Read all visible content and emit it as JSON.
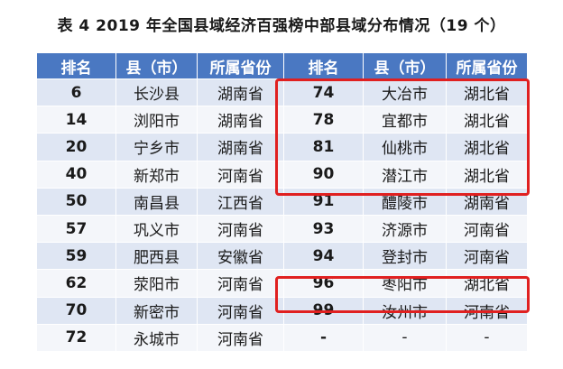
{
  "title": "表 4  2019 年全国县域经济百强榜中部县域分布情况（19 个）",
  "headers": [
    "排名",
    "县（市）",
    "所属省份",
    "排名",
    "县（市）",
    "所属省份"
  ],
  "rows": [
    [
      "6",
      "长沙县",
      "湖南省",
      "74",
      "大冶市",
      "湖北省"
    ],
    [
      "14",
      "浏阳市",
      "湖南省",
      "78",
      "宜都市",
      "湖北省"
    ],
    [
      "20",
      "宁乡市",
      "湖南省",
      "81",
      "仙桃市",
      "湖北省"
    ],
    [
      "40",
      "新郑市",
      "河南省",
      "90",
      "潜江市",
      "湖北省"
    ],
    [
      "50",
      "南昌县",
      "江西省",
      "91",
      "醴陵市",
      "湖南省"
    ],
    [
      "57",
      "巩义市",
      "河南省",
      "93",
      "济源市",
      "河南省"
    ],
    [
      "59",
      "肥西县",
      "安徽省",
      "94",
      "登封市",
      "河南省"
    ],
    [
      "62",
      "荥阳市",
      "河南省",
      "96",
      "枣阳市",
      "湖北省"
    ],
    [
      "70",
      "新密市",
      "河南省",
      "99",
      "汝州市",
      "河南省"
    ],
    [
      "72",
      "永城市",
      "河南省",
      "-",
      "-",
      "-"
    ]
  ],
  "colors": {
    "header_bg": "#4a78c2",
    "row_odd": "#dfe6f3",
    "row_even": "#f4f6fa",
    "highlight": "#e02020"
  }
}
